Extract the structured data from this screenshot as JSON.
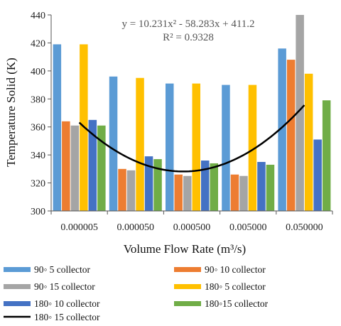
{
  "chart_data": {
    "type": "bar",
    "xlabel": "Volume Flow Rate (m³/s)",
    "ylabel": "Temperature Solid (K)",
    "ylim": [
      300,
      440
    ],
    "yticks": [
      300,
      320,
      340,
      360,
      380,
      400,
      420,
      440
    ],
    "categories": [
      "0.000005",
      "0.000050",
      "0.000500",
      "0.005000",
      "0.050000"
    ],
    "series": [
      {
        "name": "90◦ 5 collector",
        "color": "#5b9bd5",
        "values": [
          419,
          396,
          391,
          390,
          416
        ]
      },
      {
        "name": "90◦ 10 collector",
        "color": "#ed7d31",
        "values": [
          364,
          330,
          326,
          326,
          408
        ]
      },
      {
        "name": "90◦ 15 collector",
        "color": "#a5a5a5",
        "values": [
          361,
          329,
          325,
          325,
          440
        ]
      },
      {
        "name": "180◦ 5 collector",
        "color": "#ffc000",
        "values": [
          419,
          395,
          391,
          390,
          398
        ]
      },
      {
        "name": "180◦ 10 collector",
        "color": "#4472c4",
        "values": [
          365,
          339,
          336,
          335,
          351
        ]
      },
      {
        "name": "180◦15 collector",
        "color": "#70ad47",
        "values": [
          361,
          337,
          334,
          333,
          379
        ]
      }
    ],
    "trendline": {
      "name": "180◦ 15 collector",
      "type": "polynomial",
      "coefficients": [
        10.231,
        -58.283,
        411.2
      ],
      "equation": "y = 10.231x² - 58.283x + 411.2",
      "r_squared": "R² = 0.9328",
      "color": "#000000"
    },
    "legend": "bottom",
    "grid": false
  }
}
